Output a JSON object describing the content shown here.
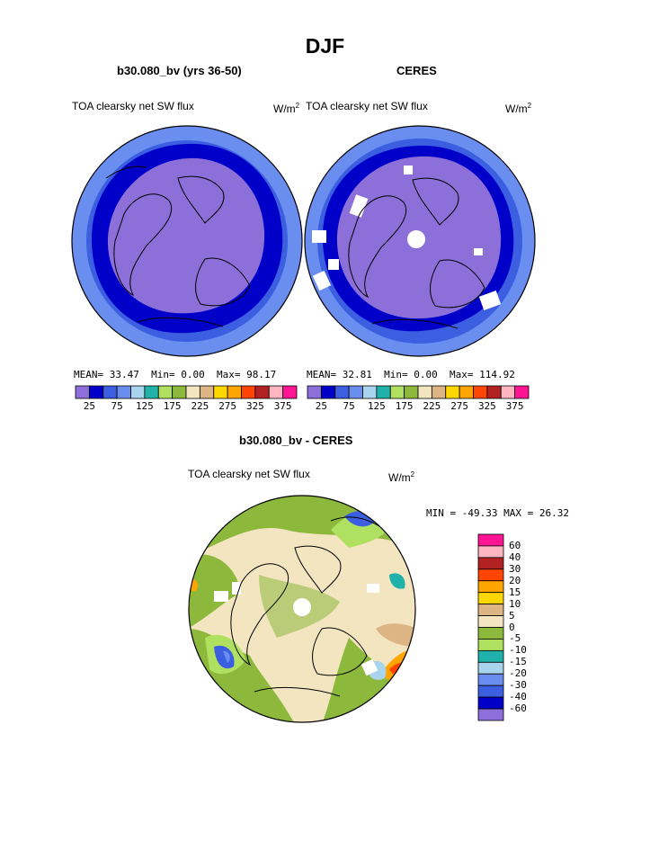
{
  "title": "DJF",
  "panels": {
    "left": {
      "subtitle": "b30.080_bv (yrs 36-50)",
      "variable": "TOA clearsky net SW flux",
      "units": "W/m",
      "units_sup": "2",
      "mean_label": "MEAN=",
      "mean": "33.47",
      "min_label": "Min=",
      "min": "0.00",
      "max_label": "Max=",
      "max": "98.17"
    },
    "right": {
      "subtitle": "CERES",
      "variable": "TOA clearsky net SW flux",
      "units": "W/m",
      "units_sup": "2",
      "mean_label": "MEAN=",
      "mean": "32.81",
      "min_label": "Min=",
      "min": "0.00",
      "max_label": "Max=",
      "max": "114.92"
    },
    "diff": {
      "subtitle": "b30.080_bv - CERES",
      "variable": "TOA clearsky net SW flux",
      "units": "W/m",
      "units_sup": "2",
      "minmax": "MIN = -49.33 MAX =  26.32"
    }
  },
  "colorbar_top": {
    "colors": [
      "#8c6fd8",
      "#0000c8",
      "#3b5fe0",
      "#6a8ef0",
      "#a9d4ee",
      "#20b2aa",
      "#b0e060",
      "#8cb83c",
      "#f3e5c0",
      "#ddb483",
      "#ffd700",
      "#ffa500",
      "#ff4500",
      "#b22222",
      "#ffb6c1",
      "#ff1493"
    ],
    "labels": [
      "25",
      "75",
      "125",
      "175",
      "225",
      "275",
      "325",
      "375"
    ]
  },
  "colorbar_diff": {
    "colors": [
      "#ff1493",
      "#ffb6c1",
      "#b22222",
      "#ff4500",
      "#ffa500",
      "#ffd700",
      "#ddb483",
      "#f3e5c0",
      "#8cb83c",
      "#b0e060",
      "#20b2aa",
      "#a9d4ee",
      "#6a8ef0",
      "#3b5fe0",
      "#0000c8",
      "#8c6fd8"
    ],
    "labels": [
      "60",
      "40",
      "30",
      "20",
      "15",
      "10",
      "5",
      "0",
      "-5",
      "-10",
      "-15",
      "-20",
      "-30",
      "-40",
      "-60"
    ]
  },
  "chart_data": [
    {
      "type": "heatmap",
      "projection": "north polar stereographic",
      "title": "b30.080_bv (yrs 36-50)",
      "field": "TOA clearsky net SW flux",
      "units": "W/m2",
      "stats": {
        "mean": 33.47,
        "min": 0.0,
        "max": 98.17
      },
      "levels": [
        25,
        50,
        75,
        100,
        125,
        150,
        175,
        200,
        225,
        250,
        275,
        300,
        325,
        350,
        375
      ]
    },
    {
      "type": "heatmap",
      "projection": "north polar stereographic",
      "title": "CERES",
      "field": "TOA clearsky net SW flux",
      "units": "W/m2",
      "stats": {
        "mean": 32.81,
        "min": 0.0,
        "max": 114.92
      },
      "levels": [
        25,
        50,
        75,
        100,
        125,
        150,
        175,
        200,
        225,
        250,
        275,
        300,
        325,
        350,
        375
      ]
    },
    {
      "type": "heatmap",
      "projection": "north polar stereographic",
      "title": "b30.080_bv - CERES",
      "field": "TOA clearsky net SW flux",
      "units": "W/m2",
      "stats": {
        "min": -49.33,
        "max": 26.32
      },
      "levels": [
        -60,
        -40,
        -30,
        -20,
        -15,
        -10,
        -5,
        0,
        5,
        10,
        15,
        20,
        30,
        40,
        60
      ]
    }
  ]
}
